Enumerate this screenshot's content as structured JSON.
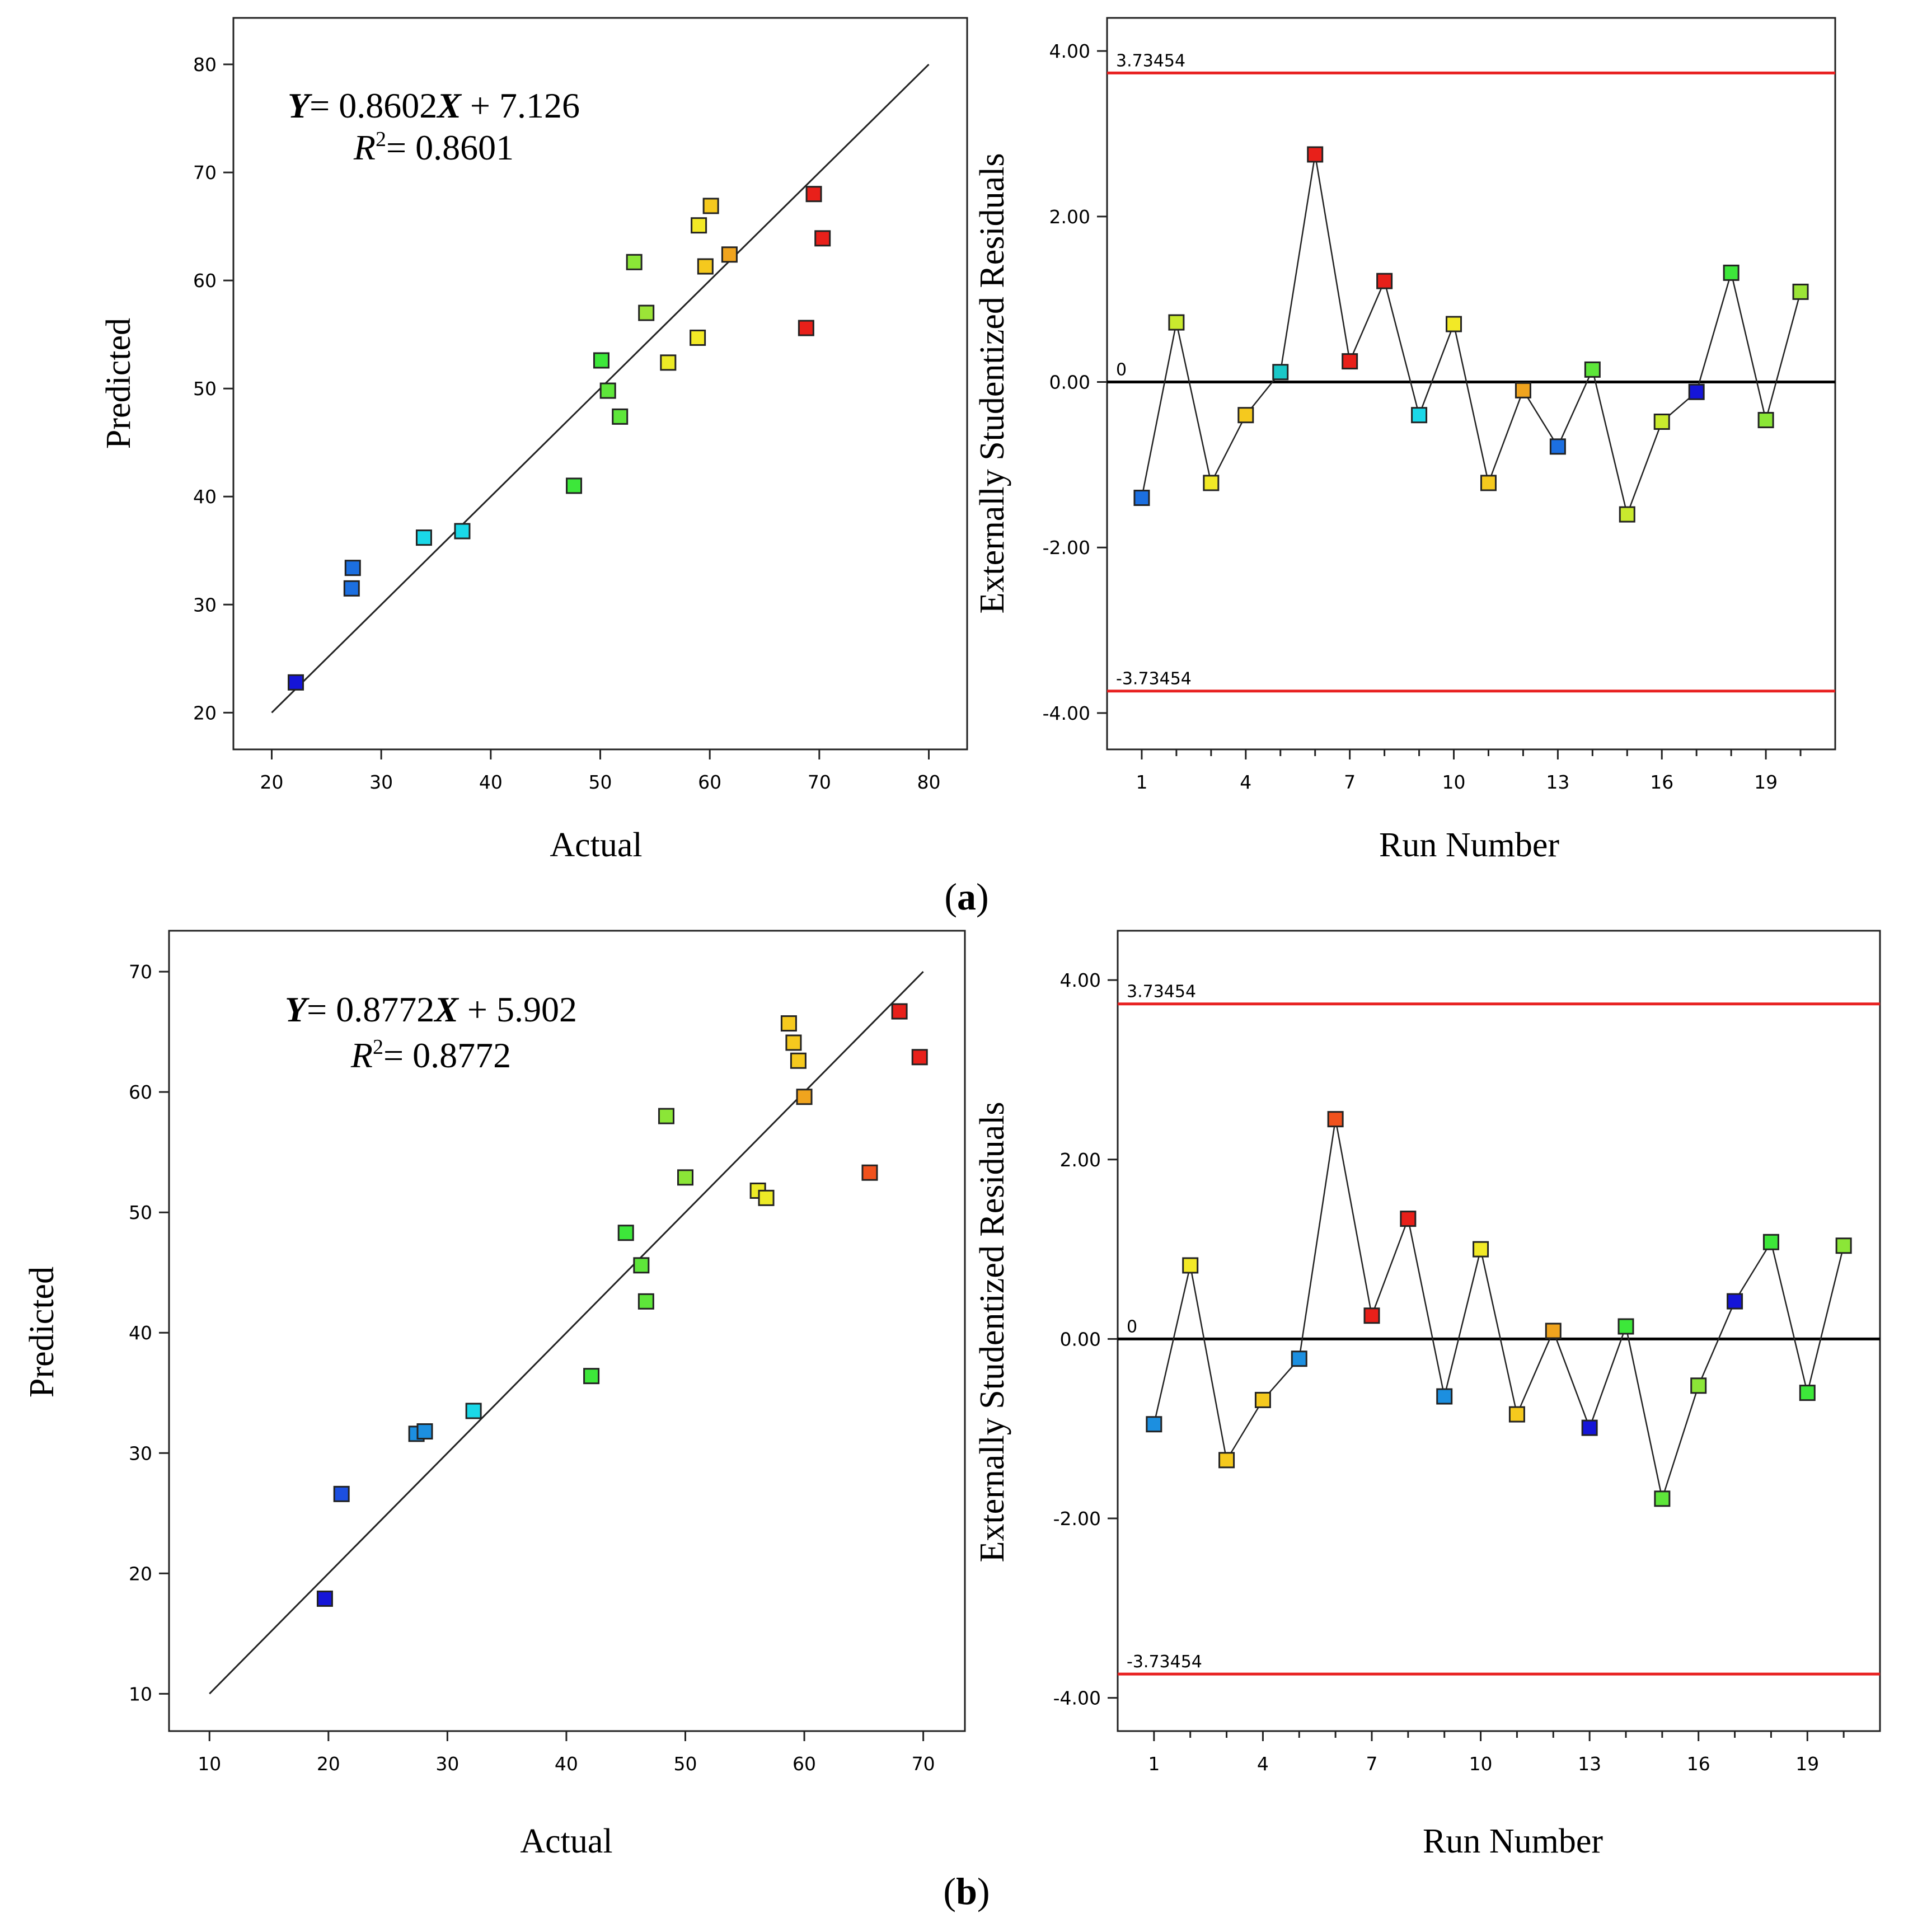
{
  "figure": {
    "panel_labels": [
      "(a)",
      "(b)"
    ]
  },
  "chart_data": [
    {
      "id": "a-pred",
      "type": "scatter",
      "xlabel": "Actual",
      "ylabel": "Predicted",
      "xlim": [
        16.5,
        83.5
      ],
      "ylim": [
        16.6,
        84.3
      ],
      "xticks": [
        20,
        30,
        40,
        50,
        60,
        70,
        80
      ],
      "yticks": [
        20,
        30,
        40,
        50,
        60,
        70,
        80
      ],
      "equation": {
        "y": "Y",
        "eq": "= 0.8602",
        "x": "X",
        "rest": " + 7.126",
        "r": "R",
        "sup": "2",
        "rval": "= 0.8601"
      },
      "fit_line": {
        "x": [
          20,
          80
        ],
        "y": [
          20,
          80
        ]
      },
      "points": [
        {
          "x": 22.2,
          "y": 22.8,
          "color": "#1515d8"
        },
        {
          "x": 27.3,
          "y": 31.5,
          "color": "#1c6fe0"
        },
        {
          "x": 27.4,
          "y": 33.4,
          "color": "#1c6fe0"
        },
        {
          "x": 33.9,
          "y": 36.2,
          "color": "#1ad8e8"
        },
        {
          "x": 37.4,
          "y": 36.8,
          "color": "#1ad8e8"
        },
        {
          "x": 47.6,
          "y": 41.0,
          "color": "#3de73a"
        },
        {
          "x": 50.1,
          "y": 52.6,
          "color": "#3de73a"
        },
        {
          "x": 50.7,
          "y": 49.8,
          "color": "#5ee63a"
        },
        {
          "x": 51.8,
          "y": 47.4,
          "color": "#5ee63a"
        },
        {
          "x": 53.1,
          "y": 61.7,
          "color": "#8be637"
        },
        {
          "x": 54.2,
          "y": 57.0,
          "color": "#9be437"
        },
        {
          "x": 56.2,
          "y": 52.4,
          "color": "#ecea26"
        },
        {
          "x": 58.9,
          "y": 54.7,
          "color": "#f2e926"
        },
        {
          "x": 59.0,
          "y": 65.1,
          "color": "#f2e926"
        },
        {
          "x": 59.6,
          "y": 61.3,
          "color": "#f5c91e"
        },
        {
          "x": 60.1,
          "y": 66.9,
          "color": "#f5c91e"
        },
        {
          "x": 61.8,
          "y": 62.4,
          "color": "#f0a41e"
        },
        {
          "x": 68.8,
          "y": 55.6,
          "color": "#e8201a"
        },
        {
          "x": 69.5,
          "y": 68.0,
          "color": "#e8201a"
        },
        {
          "x": 70.3,
          "y": 63.9,
          "color": "#e8201a"
        }
      ]
    },
    {
      "id": "a-resid",
      "type": "line",
      "xlabel": "Run Number",
      "ylabel": "Externally Studentized Residuals",
      "xlim": [
        0,
        21
      ],
      "ylim": [
        -4.44,
        4.4
      ],
      "xticks": [
        1,
        4,
        7,
        10,
        13,
        16,
        19
      ],
      "yticks": [
        4,
        2,
        0,
        -2,
        -4
      ],
      "ytick_labels": [
        "4.00",
        "2.00",
        "0.00",
        "-2.00",
        "-4.00"
      ],
      "limits": {
        "upper": 3.73454,
        "lower": -3.73454,
        "upper_label": "3.73454",
        "lower_label": "-3.73454",
        "zero_label": "0"
      },
      "x": [
        1,
        2,
        3,
        4,
        5,
        6,
        7,
        8,
        9,
        10,
        11,
        12,
        13,
        14,
        15,
        16,
        17,
        18,
        19,
        20
      ],
      "values": [
        -1.4,
        0.72,
        -1.22,
        -0.4,
        0.12,
        2.75,
        0.25,
        1.22,
        -0.4,
        0.7,
        -1.22,
        -0.1,
        -0.78,
        0.15,
        -1.6,
        -0.48,
        -0.12,
        1.32,
        -0.46,
        1.09
      ],
      "colors": [
        "#1c6fe0",
        "#c9ea2e",
        "#f2e926",
        "#f5c91e",
        "#1ac8c8",
        "#e8201a",
        "#e8201a",
        "#e8201a",
        "#1ad8e8",
        "#f2e926",
        "#f5c91e",
        "#f0a41e",
        "#1c6fe0",
        "#5ee63a",
        "#c9ea2e",
        "#c9ea2e",
        "#1515d8",
        "#3de73a",
        "#8be637",
        "#9be437"
      ]
    },
    {
      "id": "b-pred",
      "type": "scatter",
      "xlabel": "Actual",
      "ylabel": "Predicted",
      "xlim": [
        6.6,
        73.5
      ],
      "ylim": [
        6.9,
        73.4
      ],
      "xticks": [
        10,
        20,
        30,
        40,
        50,
        60,
        70
      ],
      "yticks": [
        10,
        20,
        30,
        40,
        50,
        60,
        70
      ],
      "equation": {
        "y": "Y",
        "eq": "= 0.8772",
        "x": "X",
        "rest": " + 5.902",
        "r": "R",
        "sup": "2",
        "rval": "= 0.8772"
      },
      "fit_line": {
        "x": [
          10,
          70
        ],
        "y": [
          10,
          70
        ]
      },
      "points": [
        {
          "x": 19.7,
          "y": 17.9,
          "color": "#1515d8"
        },
        {
          "x": 21.1,
          "y": 26.6,
          "color": "#1c4fe0"
        },
        {
          "x": 27.4,
          "y": 31.6,
          "color": "#1c8fe0"
        },
        {
          "x": 28.1,
          "y": 31.8,
          "color": "#1c8fe0"
        },
        {
          "x": 32.2,
          "y": 33.5,
          "color": "#1ad8e8"
        },
        {
          "x": 42.1,
          "y": 36.4,
          "color": "#3de73a"
        },
        {
          "x": 45.0,
          "y": 48.3,
          "color": "#3de73a"
        },
        {
          "x": 46.3,
          "y": 45.6,
          "color": "#5ee63a"
        },
        {
          "x": 46.7,
          "y": 42.6,
          "color": "#5ee63a"
        },
        {
          "x": 48.4,
          "y": 58.0,
          "color": "#8be637"
        },
        {
          "x": 50.0,
          "y": 52.9,
          "color": "#8be637"
        },
        {
          "x": 56.1,
          "y": 51.8,
          "color": "#ecea26"
        },
        {
          "x": 56.8,
          "y": 51.2,
          "color": "#ecea26"
        },
        {
          "x": 58.7,
          "y": 65.7,
          "color": "#f5c91e"
        },
        {
          "x": 59.1,
          "y": 64.1,
          "color": "#f5c91e"
        },
        {
          "x": 59.5,
          "y": 62.6,
          "color": "#f5c91e"
        },
        {
          "x": 60.0,
          "y": 59.6,
          "color": "#f0a41e"
        },
        {
          "x": 65.5,
          "y": 53.3,
          "color": "#f0521e"
        },
        {
          "x": 68.0,
          "y": 66.7,
          "color": "#e8201a"
        },
        {
          "x": 69.7,
          "y": 62.9,
          "color": "#e8201a"
        }
      ]
    },
    {
      "id": "b-resid",
      "type": "line",
      "xlabel": "Run Number",
      "ylabel": "Externally Studentized Residuals",
      "xlim": [
        0,
        21
      ],
      "ylim": [
        -4.37,
        4.55
      ],
      "xticks": [
        1,
        4,
        7,
        10,
        13,
        16,
        19
      ],
      "yticks": [
        4,
        2,
        0,
        -2,
        -4
      ],
      "ytick_labels": [
        "4.00",
        "2.00",
        "0.00",
        "-2.00",
        "-4.00"
      ],
      "limits": {
        "upper": 3.73454,
        "lower": -3.73454,
        "upper_label": "3.73454",
        "lower_label": "-3.73454",
        "zero_label": "0"
      },
      "x": [
        1,
        2,
        3,
        4,
        5,
        6,
        7,
        8,
        9,
        10,
        11,
        12,
        13,
        14,
        15,
        16,
        17,
        18,
        19,
        20
      ],
      "values": [
        -0.95,
        0.82,
        -1.35,
        -0.68,
        -0.22,
        2.45,
        0.26,
        1.34,
        -0.64,
        1.0,
        -0.84,
        0.09,
        -0.99,
        0.14,
        -1.78,
        -0.52,
        0.42,
        1.08,
        -0.6,
        1.04
      ],
      "colors": [
        "#1c8fe0",
        "#f2e926",
        "#f5c91e",
        "#f5c91e",
        "#1c8fe0",
        "#f0521e",
        "#e8201a",
        "#e8201a",
        "#1c8fe0",
        "#f2e926",
        "#f5c91e",
        "#f0a41e",
        "#1515d8",
        "#3de73a",
        "#5ee63a",
        "#8be637",
        "#1515d8",
        "#3de73a",
        "#3de73a",
        "#8be637"
      ]
    }
  ]
}
